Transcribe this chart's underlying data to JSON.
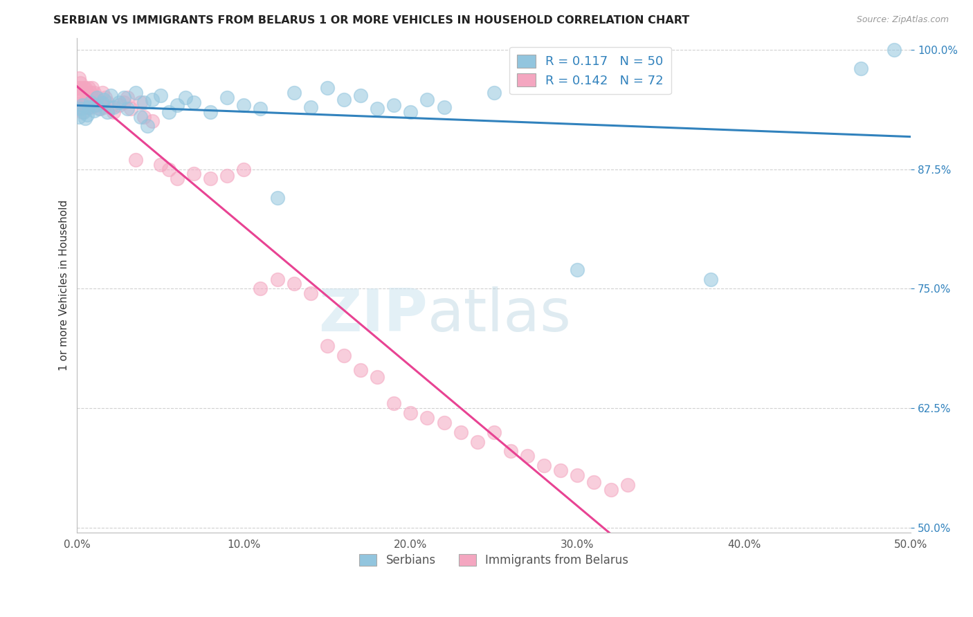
{
  "title": "SERBIAN VS IMMIGRANTS FROM BELARUS 1 OR MORE VEHICLES IN HOUSEHOLD CORRELATION CHART",
  "source": "Source: ZipAtlas.com",
  "ylabel": "1 or more Vehicles in Household",
  "xmin": 0.0,
  "xmax": 0.5,
  "ymin": 0.495,
  "ymax": 1.012,
  "xticks": [
    0.0,
    0.1,
    0.2,
    0.3,
    0.4,
    0.5
  ],
  "xticklabels": [
    "0.0%",
    "10.0%",
    "20.0%",
    "30.0%",
    "40.0%",
    "50.0%"
  ],
  "yticks": [
    0.5,
    0.625,
    0.75,
    0.875,
    1.0
  ],
  "yticklabels": [
    "50.0%",
    "62.5%",
    "75.0%",
    "87.5%",
    "100.0%"
  ],
  "legend_r_blue": "0.117",
  "legend_n_blue": "50",
  "legend_r_pink": "0.142",
  "legend_n_pink": "72",
  "blue_color": "#92c5de",
  "pink_color": "#f4a6c0",
  "blue_line_color": "#3182bd",
  "pink_line_color": "#e84393",
  "blue_x": [
    0.001,
    0.002,
    0.003,
    0.004,
    0.005,
    0.006,
    0.007,
    0.008,
    0.01,
    0.011,
    0.012,
    0.013,
    0.015,
    0.016,
    0.018,
    0.02,
    0.022,
    0.025,
    0.028,
    0.03,
    0.035,
    0.038,
    0.04,
    0.042,
    0.045,
    0.05,
    0.055,
    0.06,
    0.065,
    0.07,
    0.08,
    0.09,
    0.1,
    0.11,
    0.12,
    0.13,
    0.14,
    0.15,
    0.16,
    0.17,
    0.18,
    0.19,
    0.2,
    0.21,
    0.22,
    0.25,
    0.3,
    0.38,
    0.47,
    0.49
  ],
  "blue_y": [
    0.93,
    0.938,
    0.942,
    0.935,
    0.928,
    0.932,
    0.94,
    0.945,
    0.936,
    0.942,
    0.95,
    0.938,
    0.944,
    0.948,
    0.935,
    0.952,
    0.94,
    0.945,
    0.95,
    0.938,
    0.955,
    0.93,
    0.945,
    0.92,
    0.948,
    0.952,
    0.935,
    0.942,
    0.95,
    0.945,
    0.935,
    0.95,
    0.942,
    0.938,
    0.845,
    0.955,
    0.94,
    0.96,
    0.948,
    0.952,
    0.938,
    0.942,
    0.935,
    0.948,
    0.94,
    0.955,
    0.77,
    0.76,
    0.98,
    1.0
  ],
  "pink_x": [
    0.001,
    0.001,
    0.001,
    0.002,
    0.002,
    0.002,
    0.003,
    0.003,
    0.003,
    0.004,
    0.004,
    0.005,
    0.005,
    0.006,
    0.006,
    0.006,
    0.007,
    0.007,
    0.008,
    0.008,
    0.009,
    0.009,
    0.01,
    0.01,
    0.011,
    0.012,
    0.013,
    0.014,
    0.015,
    0.016,
    0.017,
    0.018,
    0.02,
    0.022,
    0.025,
    0.028,
    0.03,
    0.032,
    0.035,
    0.038,
    0.04,
    0.045,
    0.05,
    0.055,
    0.06,
    0.07,
    0.08,
    0.09,
    0.1,
    0.11,
    0.12,
    0.13,
    0.14,
    0.15,
    0.16,
    0.17,
    0.18,
    0.19,
    0.2,
    0.21,
    0.22,
    0.23,
    0.24,
    0.25,
    0.26,
    0.27,
    0.28,
    0.29,
    0.3,
    0.31,
    0.32,
    0.33
  ],
  "pink_y": [
    0.96,
    0.97,
    0.95,
    0.96,
    0.965,
    0.94,
    0.955,
    0.948,
    0.935,
    0.96,
    0.945,
    0.96,
    0.942,
    0.955,
    0.94,
    0.95,
    0.96,
    0.945,
    0.955,
    0.94,
    0.96,
    0.948,
    0.955,
    0.942,
    0.95,
    0.948,
    0.945,
    0.938,
    0.955,
    0.94,
    0.95,
    0.945,
    0.94,
    0.935,
    0.942,
    0.945,
    0.95,
    0.938,
    0.885,
    0.945,
    0.93,
    0.925,
    0.88,
    0.875,
    0.865,
    0.87,
    0.865,
    0.868,
    0.875,
    0.75,
    0.76,
    0.755,
    0.745,
    0.69,
    0.68,
    0.665,
    0.658,
    0.63,
    0.62,
    0.615,
    0.61,
    0.6,
    0.59,
    0.6,
    0.58,
    0.575,
    0.565,
    0.56,
    0.555,
    0.548,
    0.54,
    0.545
  ]
}
